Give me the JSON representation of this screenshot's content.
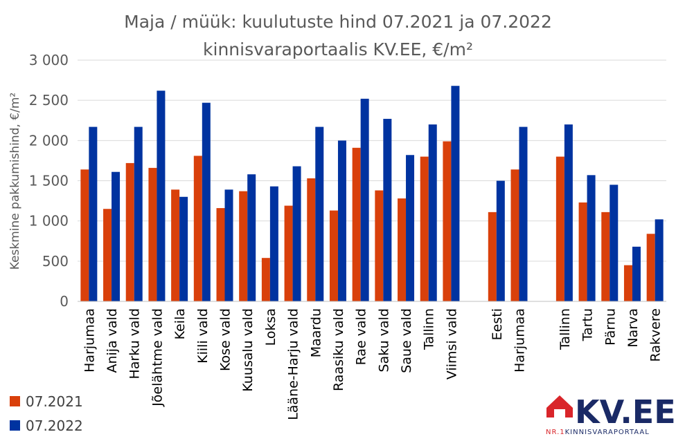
{
  "chart_data": {
    "type": "bar",
    "title": "Maja / müük: kuulutuste hind 07.2021 ja 07.2022",
    "subtitle": "kinnisvaraportaalis KV.EE, €/m²",
    "ylabel": "Keskmine pakkumishind, €/m²",
    "ylim": [
      0,
      3000
    ],
    "yticks": [
      0,
      500,
      1000,
      1500,
      2000,
      2500,
      3000
    ],
    "ytick_labels": [
      "0",
      "500",
      "1 000",
      "1 500",
      "2 000",
      "2 500",
      "3 000"
    ],
    "grid": true,
    "legend_position": "bottom-left",
    "categories": [
      "Harjumaa",
      "Anija vald",
      "Harku vald",
      "Jõelähtme vald",
      "Keila",
      "Kiili vald",
      "Kose vald",
      "Kuusalu vald",
      "Loksa",
      "Lääne-Harju vald",
      "Maardu",
      "Raasiku vald",
      "Rae vald",
      "Saku vald",
      "Saue vald",
      "Tallinn",
      "Viimsi vald",
      "",
      "Eesti",
      "Harjumaa",
      "",
      "Tallinn",
      "Tartu",
      "Pärnu",
      "Narva",
      "Rakvere"
    ],
    "series": [
      {
        "name": "07.2021",
        "color": "#d9400b",
        "values": [
          1640,
          1150,
          1720,
          1660,
          1390,
          1810,
          1160,
          1370,
          540,
          1190,
          1530,
          1130,
          1910,
          1380,
          1280,
          1800,
          1990,
          null,
          1110,
          1640,
          null,
          1800,
          1230,
          1110,
          450,
          840
        ]
      },
      {
        "name": "07.2022",
        "color": "#0033a0",
        "values": [
          2170,
          1610,
          2170,
          2620,
          1300,
          2470,
          1390,
          1580,
          1430,
          1680,
          2170,
          2000,
          2520,
          2270,
          1820,
          2200,
          2680,
          null,
          1500,
          2170,
          null,
          2200,
          1570,
          1450,
          680,
          1020
        ]
      }
    ]
  },
  "logo": {
    "text": "KV.EE",
    "tagline_prefix": "NR.1",
    "tagline": "KINNISVARAPORTAAL",
    "color": "#1a2a66",
    "accent": "#d9252a"
  }
}
